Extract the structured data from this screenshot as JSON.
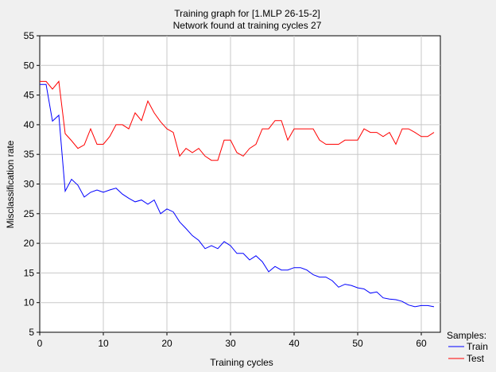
{
  "chart_data": {
    "type": "line",
    "title": "Training graph for [1.MLP 26-15-2]",
    "subtitle": "Network found at training cycles 27",
    "xlabel": "Training cycles",
    "ylabel": "Misclassification rate",
    "xlim": [
      0,
      63
    ],
    "ylim": [
      5,
      55
    ],
    "xticks": [
      0,
      10,
      20,
      30,
      40,
      50,
      60
    ],
    "yticks": [
      5,
      10,
      15,
      20,
      25,
      30,
      35,
      40,
      45,
      50,
      55
    ],
    "grid": true,
    "legend_title": "Samples:",
    "legend_position": "bottom-right",
    "x": [
      0,
      1,
      2,
      3,
      4,
      5,
      6,
      7,
      8,
      9,
      10,
      11,
      12,
      13,
      14,
      15,
      16,
      17,
      18,
      19,
      20,
      21,
      22,
      23,
      24,
      25,
      26,
      27,
      28,
      29,
      30,
      31,
      32,
      33,
      34,
      35,
      36,
      37,
      38,
      39,
      40,
      41,
      42,
      43,
      44,
      45,
      46,
      47,
      48,
      49,
      50,
      51,
      52,
      53,
      54,
      55,
      56,
      57,
      58,
      59,
      60,
      61,
      62
    ],
    "series": [
      {
        "name": "Train",
        "color": "#0000ff",
        "values": [
          46.8,
          46.8,
          40.6,
          41.6,
          28.8,
          30.8,
          29.8,
          27.8,
          28.6,
          29.0,
          28.6,
          29.0,
          29.3,
          28.3,
          27.6,
          27.0,
          27.3,
          26.6,
          27.3,
          25.0,
          25.8,
          25.3,
          23.6,
          22.5,
          21.3,
          20.5,
          19.1,
          19.6,
          19.1,
          20.3,
          19.6,
          18.3,
          18.3,
          17.2,
          17.9,
          16.9,
          15.2,
          16.1,
          15.5,
          15.5,
          15.9,
          15.9,
          15.5,
          14.7,
          14.3,
          14.3,
          13.7,
          12.6,
          13.1,
          12.9,
          12.5,
          12.3,
          11.6,
          11.8,
          10.8,
          10.6,
          10.5,
          10.2,
          9.6,
          9.3,
          9.5,
          9.5,
          9.3
        ]
      },
      {
        "name": "Test",
        "color": "#ff0000",
        "values": [
          47.3,
          47.3,
          46.0,
          47.3,
          38.5,
          37.3,
          36.0,
          36.6,
          39.3,
          36.7,
          36.7,
          38.0,
          40.0,
          40.0,
          39.3,
          42.0,
          40.7,
          44.0,
          42.0,
          40.5,
          39.3,
          38.7,
          34.7,
          36.0,
          35.3,
          36.0,
          34.7,
          34.0,
          34.0,
          37.4,
          37.4,
          35.3,
          34.7,
          36.0,
          36.7,
          39.3,
          39.3,
          40.7,
          40.7,
          37.4,
          39.3,
          39.3,
          39.3,
          39.3,
          37.4,
          36.7,
          36.7,
          36.7,
          37.4,
          37.4,
          37.4,
          39.3,
          38.7,
          38.7,
          38.0,
          38.7,
          36.7,
          39.3,
          39.3,
          38.7,
          38.0,
          38.0,
          38.7
        ]
      }
    ]
  }
}
